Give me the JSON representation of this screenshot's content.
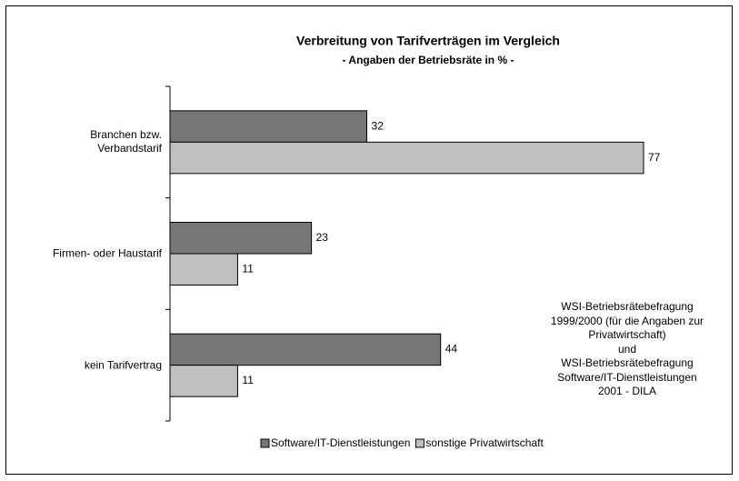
{
  "chart_data": {
    "type": "bar",
    "orientation": "horizontal",
    "title": "Verbreitung von Tarifverträgen im Vergleich",
    "subtitle": "- Angaben der Betriebsräte in % -",
    "categories": [
      "Branchen bzw.\nVerbandstarif",
      "Firmen- oder Haustarif",
      "kein Tarifvertrag"
    ],
    "series": [
      {
        "name": "Software/IT-Dienstleistungen",
        "color": "#777777",
        "values": [
          32,
          23,
          44
        ]
      },
      {
        "name": "sonstige Privatwirtschaft",
        "color": "#c0c0c0",
        "values": [
          77,
          11,
          11
        ]
      }
    ],
    "annotation": "WSI-Betriebsrätebefragung\n1999/2000 (für die Angaben zur\nPrivatwirtschaft)\nund\nWSI-Betriebsrätebefragung\nSoftware/IT-Dienstleistungen\n2001 - DILA",
    "legend": "bottom"
  }
}
